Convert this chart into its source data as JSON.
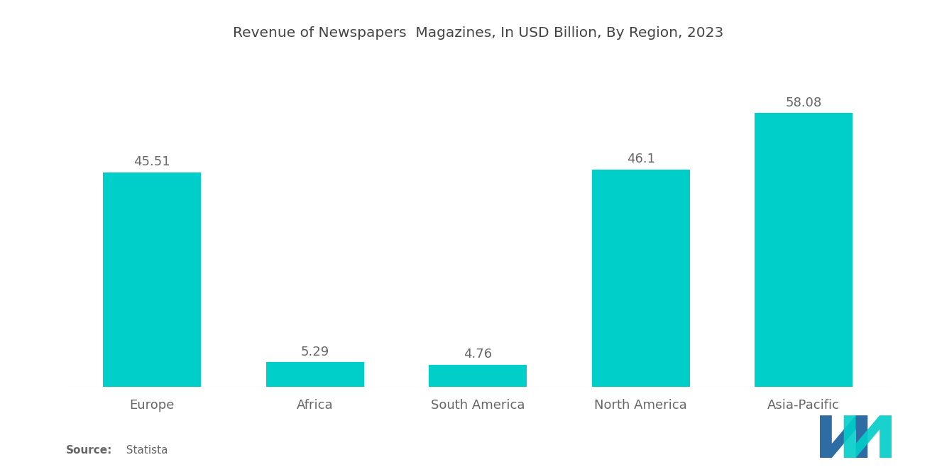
{
  "title": "Revenue of Newspapers  Magazines, In USD Billion, By Region, 2023",
  "categories": [
    "Europe",
    "Africa",
    "South America",
    "North America",
    "Asia-Pacific"
  ],
  "values": [
    45.51,
    5.29,
    4.76,
    46.1,
    58.08
  ],
  "bar_color": "#00CEC9",
  "background_color": "#ffffff",
  "title_fontsize": 14.5,
  "label_fontsize": 13,
  "value_fontsize": 13,
  "source_bold": "Source:",
  "source_normal": "  Statista",
  "ylim": [
    0,
    70
  ],
  "bar_width": 0.6,
  "logo_blue": "#2E6DA4",
  "logo_teal": "#00CEC9"
}
